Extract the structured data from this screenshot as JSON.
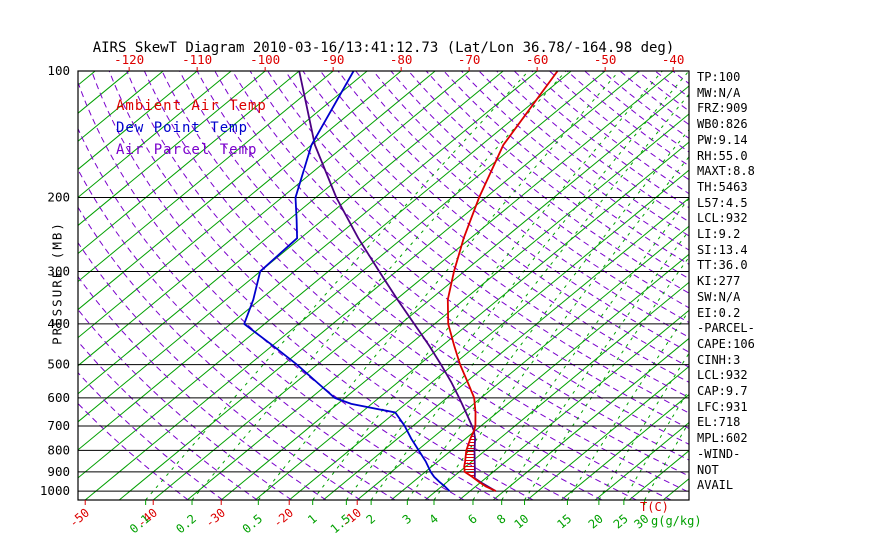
{
  "title": "AIRS SkewT Diagram 2010-03-16/13:41:12.73 (Lat/Lon 36.78/-164.98 deg)",
  "legend": {
    "ambient_label": "Ambient Air Temp",
    "dew_label": "Dew Point Temp",
    "parcel_label": "Air Parcel Temp"
  },
  "axes": {
    "pressure_label": "PRESSURE (MB)",
    "pressure_ticks": [
      100,
      200,
      300,
      400,
      500,
      600,
      700,
      800,
      900,
      1000
    ],
    "top_temp_ticks": [
      -120,
      -110,
      -100,
      -90,
      -80,
      -70,
      -60,
      -50,
      -40
    ],
    "bottom_temp_ticks": [
      -50,
      -40,
      -30,
      -20,
      -10
    ],
    "mixing_ratio_ticks": [
      0.1,
      0.2,
      0.5,
      1,
      1.5,
      2,
      3,
      4,
      6,
      8,
      10,
      15,
      20,
      25,
      30
    ],
    "temp_unit_label": "T(C)",
    "mixing_unit_label": "g(g/kg)"
  },
  "stats_panel": {
    "lines": [
      "TP:100",
      "MW:N/A",
      "FRZ:909",
      "WB0:826",
      "PW:9.14",
      "RH:55.0",
      "MAXT:8.8",
      "TH:5463",
      "L57:4.5",
      "LCL:932",
      "LI:9.2",
      "SI:13.4",
      "TT:36.0",
      "KI:277",
      "SW:N/A",
      "EI:0.2",
      "-PARCEL-",
      "CAPE:106",
      "CINH:3",
      "LCL:932",
      "CAP:9.7",
      "LFC:931",
      "EL:718",
      "MPL:602",
      "-WIND-",
      "NOT",
      "AVAIL"
    ]
  },
  "colors": {
    "background": "#ffffff",
    "frame": "#000000",
    "isotherm": "#00a000",
    "dry_adiabat": "#7a00cc",
    "temp_curve": "#dc0000",
    "dew_curve": "#0000cd",
    "parcel_curve": "#4b0082",
    "axis_text": "#000000"
  },
  "chart_data": {
    "type": "skewt",
    "title": "AIRS SkewT Diagram 2010-03-16/13:41:12.73 (Lat/Lon 36.78/-164.98 deg)",
    "y_axis": {
      "label": "PRESSURE (MB)",
      "scale": "log",
      "ticks_mb": [
        100,
        200,
        300,
        400,
        500,
        600,
        700,
        800,
        900,
        1000
      ],
      "range_mb": [
        100,
        1050
      ]
    },
    "x_axis": {
      "label": "T(C)",
      "top_ticks_c": [
        -120,
        -110,
        -100,
        -90,
        -80,
        -70,
        -60,
        -50,
        -40
      ],
      "bottom_ticks_c": [
        -50,
        -40,
        -30,
        -20,
        -10
      ],
      "note": "skewed temperature axis, isotherms slant toward upper right"
    },
    "isotherm_step_c": 5,
    "dry_adiabat_theta_k": {
      "min": 235,
      "max": 455,
      "step": 5
    },
    "mixing_ratio_lines_gkg": [
      0.1,
      0.2,
      0.5,
      1,
      1.5,
      2,
      3,
      4,
      6,
      8,
      10,
      15,
      20,
      25,
      30
    ],
    "series": [
      {
        "name": "Ambient Air Temp",
        "color_key": "temp_curve",
        "points_p_t": [
          [
            1000,
            8.8
          ],
          [
            975,
            6.5
          ],
          [
            950,
            4.6
          ],
          [
            925,
            2.8
          ],
          [
            900,
            0.8
          ],
          [
            875,
            -0.2
          ],
          [
            850,
            -1.0
          ],
          [
            800,
            -2.8
          ],
          [
            750,
            -4.3
          ],
          [
            718,
            -5.2
          ],
          [
            700,
            -5.8
          ],
          [
            650,
            -8.2
          ],
          [
            600,
            -11.0
          ],
          [
            550,
            -14.8
          ],
          [
            500,
            -19.0
          ],
          [
            450,
            -23.3
          ],
          [
            400,
            -28.0
          ],
          [
            350,
            -32.4
          ],
          [
            300,
            -36.5
          ],
          [
            250,
            -41.0
          ],
          [
            200,
            -46.0
          ],
          [
            150,
            -51.8
          ],
          [
            100,
            -57.0
          ]
        ]
      },
      {
        "name": "Dew Point Temp",
        "color_key": "dew_curve",
        "points_p_t": [
          [
            1000,
            2.0
          ],
          [
            975,
            0.5
          ],
          [
            950,
            -1.2
          ],
          [
            925,
            -2.8
          ],
          [
            900,
            -4.2
          ],
          [
            850,
            -6.8
          ],
          [
            800,
            -9.8
          ],
          [
            750,
            -13.0
          ],
          [
            700,
            -16.2
          ],
          [
            650,
            -20.0
          ],
          [
            620,
            -28.0
          ],
          [
            600,
            -31.5
          ],
          [
            550,
            -37.0
          ],
          [
            500,
            -43.0
          ],
          [
            450,
            -50.0
          ],
          [
            400,
            -58.0
          ],
          [
            350,
            -61.0
          ],
          [
            300,
            -65.0
          ],
          [
            250,
            -65.5
          ],
          [
            225,
            -69.0
          ],
          [
            200,
            -73.0
          ],
          [
            150,
            -80.0
          ],
          [
            100,
            -87.0
          ]
        ]
      },
      {
        "name": "Air Parcel Temp",
        "color_key": "parcel_curve",
        "points_p_t": [
          [
            1000,
            8.8
          ],
          [
            960,
            5.6
          ],
          [
            932,
            3.4
          ],
          [
            900,
            2.3
          ],
          [
            850,
            0.4
          ],
          [
            800,
            -1.6
          ],
          [
            750,
            -3.6
          ],
          [
            718,
            -5.2
          ],
          [
            700,
            -6.3
          ],
          [
            650,
            -9.6
          ],
          [
            600,
            -13.2
          ],
          [
            550,
            -17.2
          ],
          [
            500,
            -21.8
          ],
          [
            450,
            -27.0
          ],
          [
            400,
            -33.0
          ],
          [
            350,
            -39.8
          ],
          [
            300,
            -47.5
          ],
          [
            250,
            -56.5
          ],
          [
            200,
            -67.0
          ],
          [
            150,
            -79.5
          ],
          [
            100,
            -95.0
          ]
        ]
      }
    ],
    "cape_hatch_region": {
      "p_bottom": 932,
      "p_top": 718,
      "between": [
        "Air Parcel Temp",
        "Ambient Air Temp"
      ]
    }
  }
}
